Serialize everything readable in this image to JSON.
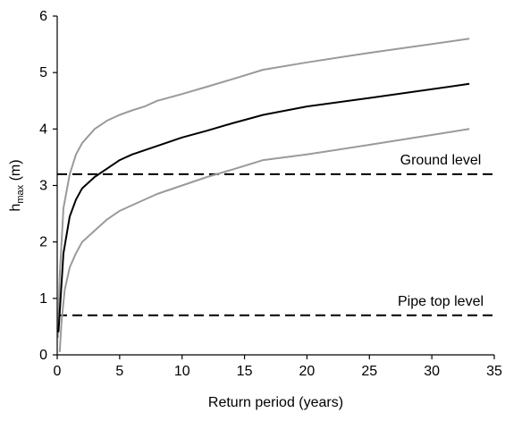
{
  "chart_data": {
    "type": "line",
    "title": "",
    "xlabel": "Return period (years)",
    "ylabel": {
      "base": "h",
      "subscript": "max",
      "suffix": " (m)"
    },
    "xlim": [
      0,
      35
    ],
    "ylim": [
      0,
      6
    ],
    "xticks": [
      0,
      5,
      10,
      15,
      20,
      25,
      30,
      35
    ],
    "yticks": [
      0,
      1,
      2,
      3,
      4,
      5,
      6
    ],
    "grid": false,
    "legend": "none",
    "series": [
      {
        "color": "#9a9a9a",
        "x": [
          0.05,
          0.2,
          0.5,
          1,
          1.5,
          2,
          3,
          4,
          5,
          6,
          7,
          8,
          10,
          12,
          14,
          16.5,
          20,
          25,
          33
        ],
        "y": [
          0.3,
          1.4,
          2.6,
          3.2,
          3.55,
          3.75,
          4.0,
          4.15,
          4.25,
          4.33,
          4.4,
          4.5,
          4.62,
          4.75,
          4.88,
          5.05,
          5.18,
          5.35,
          5.6
        ]
      },
      {
        "color": "#000000",
        "x": [
          0.1,
          0.3,
          0.5,
          1,
          1.5,
          2,
          3,
          4,
          5,
          6,
          8,
          10,
          12,
          14,
          16.5,
          20,
          25,
          33
        ],
        "y": [
          0.4,
          1.1,
          1.8,
          2.45,
          2.75,
          2.95,
          3.15,
          3.3,
          3.45,
          3.55,
          3.7,
          3.85,
          3.97,
          4.1,
          4.25,
          4.4,
          4.55,
          4.8
        ]
      },
      {
        "color": "#9a9a9a",
        "x": [
          0.2,
          0.35,
          0.6,
          1,
          1.5,
          2,
          3,
          4,
          5,
          6,
          8,
          10,
          12,
          14,
          16.5,
          20,
          25,
          33
        ],
        "y": [
          0.05,
          0.6,
          1.15,
          1.55,
          1.8,
          2.0,
          2.2,
          2.4,
          2.55,
          2.65,
          2.85,
          3.0,
          3.15,
          3.28,
          3.45,
          3.55,
          3.72,
          4.0
        ]
      }
    ],
    "reference_lines": [
      {
        "label": "Ground level",
        "y": 3.2,
        "style": "dashed",
        "color": "#000000"
      },
      {
        "label": "Pipe top level",
        "y": 0.7,
        "style": "dashed",
        "color": "#000000"
      }
    ]
  }
}
